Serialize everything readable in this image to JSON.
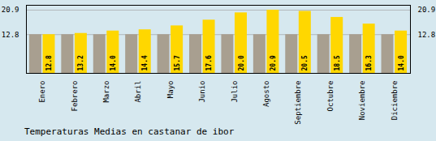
{
  "chart_data": {
    "type": "bar",
    "title": "Temperaturas Medias en castanar de ibor",
    "categories": [
      "Enero",
      "Febrero",
      "Marzo",
      "Abril",
      "Mayo",
      "Junio",
      "Julio",
      "Agosto",
      "Septiembre",
      "Octubre",
      "Noviembre",
      "Diciembre"
    ],
    "series": [
      {
        "color": "#A89F90",
        "values": [
          12.8,
          12.8,
          12.8,
          12.8,
          12.8,
          12.8,
          12.8,
          12.8,
          12.8,
          12.8,
          12.8,
          12.8
        ]
      },
      {
        "color": "#FFD700",
        "values": [
          12.8,
          13.2,
          14.0,
          14.4,
          15.7,
          17.6,
          20.0,
          20.9,
          20.5,
          18.5,
          16.3,
          14.0
        ],
        "data_labels": true,
        "value_labels": [
          "12.8",
          "13.2",
          "14.0",
          "14.4",
          "15.7",
          "17.6",
          "20.0",
          "20.9",
          "20.5",
          "18.5",
          "16.3",
          "14.0"
        ]
      }
    ],
    "ylim": [
      0,
      22.5
    ],
    "yticks": [
      12.8,
      20.9
    ],
    "y2lim": [
      0,
      22.5
    ],
    "y2ticks": [
      12.8,
      20.9
    ],
    "grid": true
  }
}
